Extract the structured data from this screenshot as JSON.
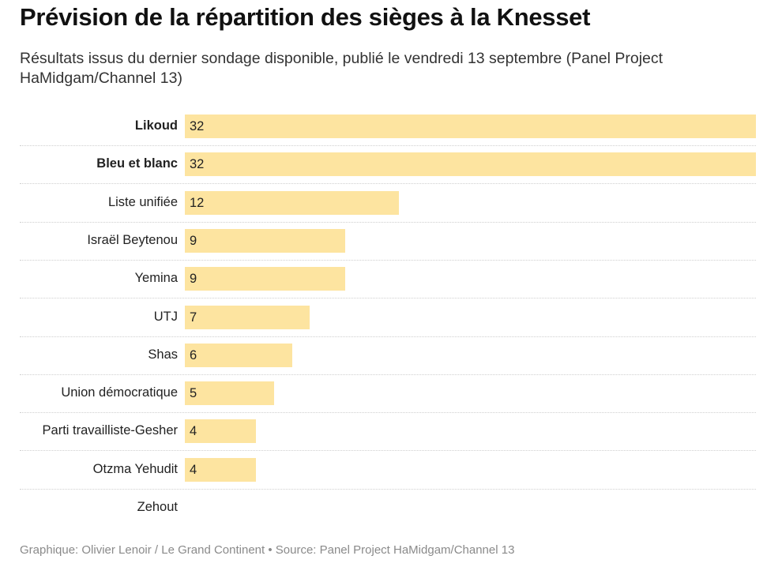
{
  "chart_data": {
    "type": "bar",
    "orientation": "horizontal",
    "title": "Prévision de la répartition des sièges à la Knesset",
    "subtitle": "Résultats issus du dernier sondage disponible, publié le vendredi 13 septembre (Panel Project HaMidgam/Channel 13)",
    "categories": [
      "Likoud",
      "Bleu et blanc",
      "Liste unifiée",
      "Israël Beytenou",
      "Yemina",
      "UTJ",
      "Shas",
      "Union démocratique",
      "Parti travailliste-Gesher",
      "Otzma Yehudit",
      "Zehout"
    ],
    "bold_categories": [
      "Likoud",
      "Bleu et blanc"
    ],
    "values": [
      32,
      32,
      12,
      9,
      9,
      7,
      6,
      5,
      4,
      4,
      null
    ],
    "xlim": [
      0,
      32
    ],
    "bar_color": "#fde4a0",
    "footer": "Graphique: Olivier Lenoir / Le Grand Continent • Source: Panel Project HaMidgam/Channel 13"
  }
}
